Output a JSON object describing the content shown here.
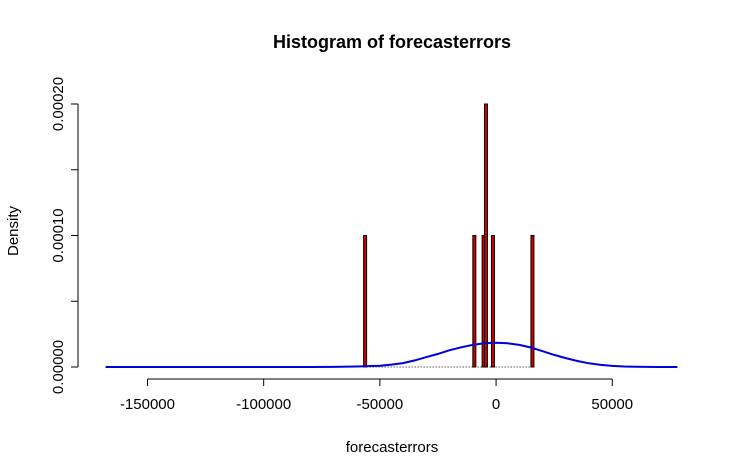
{
  "chart_data": {
    "type": "bar",
    "title": "Histogram of forecasterrors",
    "xlabel": "forecasterrors",
    "ylabel": "Density",
    "xlim": [
      -170000,
      80000
    ],
    "ylim": [
      0,
      0.0002
    ],
    "x_ticks": [
      -150000,
      -100000,
      -50000,
      0,
      50000
    ],
    "x_tick_labels": [
      "-150000",
      "-100000",
      "-50000",
      "0",
      "50000"
    ],
    "y_ticks": [
      0,
      5e-05,
      0.0001,
      0.00015,
      0.0002
    ],
    "y_tick_labels": [
      "0.00000",
      "",
      "0.00010",
      "",
      "0.00020"
    ],
    "bin_width": 1000,
    "bins": [
      {
        "start": -57000,
        "end": -56000,
        "density": 0.0001
      },
      {
        "start": -10000,
        "end": -9000,
        "density": 0.0001
      },
      {
        "start": -6000,
        "end": -5000,
        "density": 0.0001
      },
      {
        "start": -5000,
        "end": -4000,
        "density": 0.0002
      },
      {
        "start": -2000,
        "end": -1000,
        "density": 0.0001
      },
      {
        "start": 15000,
        "end": 16000,
        "density": 0.0001
      }
    ],
    "bar_fill": "#cc0000",
    "density_curve": {
      "color": "#0000dd",
      "x": [
        -168000,
        -80000,
        -70000,
        -60000,
        -50000,
        -45000,
        -40000,
        -35000,
        -30000,
        -25000,
        -20000,
        -15000,
        -10000,
        -5000,
        0,
        5000,
        10000,
        15000,
        20000,
        25000,
        30000,
        35000,
        40000,
        45000,
        50000,
        55000,
        60000,
        65000,
        70000,
        78000
      ],
      "y": [
        0,
        0,
        1e-07,
        4e-07,
        1e-06,
        1.8e-06,
        3e-06,
        5e-06,
        7.5e-06,
        1e-05,
        1.28e-05,
        1.5e-05,
        1.68e-05,
        1.8e-05,
        1.85e-05,
        1.8e-05,
        1.68e-05,
        1.48e-05,
        1.2e-05,
        9.2e-06,
        6.8e-06,
        4.6e-06,
        2.8e-06,
        1.6e-06,
        8e-07,
        4e-07,
        2e-07,
        1e-07,
        0,
        0
      ]
    }
  }
}
